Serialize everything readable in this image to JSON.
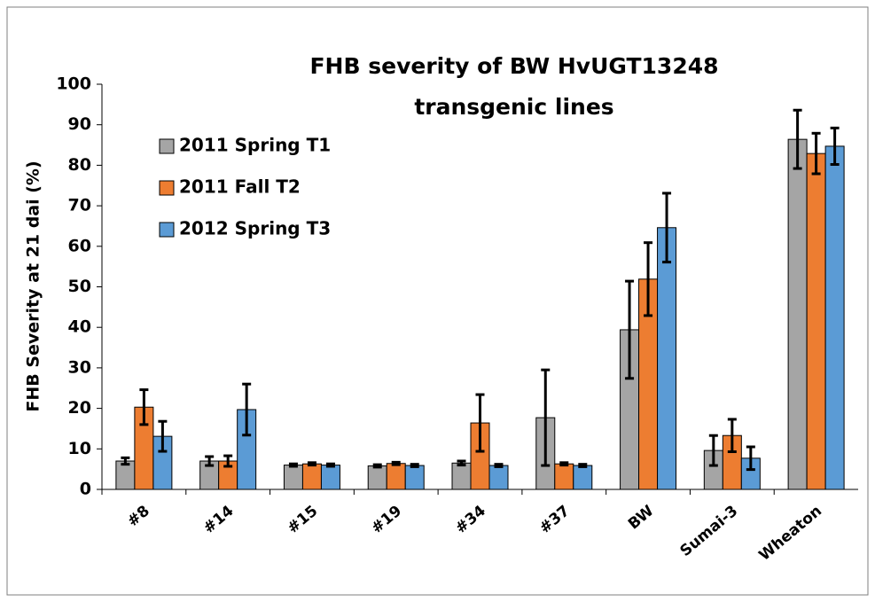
{
  "chart_data": {
    "type": "bar",
    "title": "FHB severity of BW HvUGT13248 transgenic lines",
    "y_label": "FHB Severity at 21 dai (%)",
    "categories": [
      "#8",
      "#14",
      "#15",
      "#19",
      "#34",
      "#37",
      "BW",
      "Sumai-3",
      "Wheaton"
    ],
    "series": [
      {
        "name": "2011 Spring T1",
        "color": "#a5a5a5",
        "values": [
          7.0,
          7.0,
          6.0,
          5.8,
          6.5,
          17.7,
          39.4,
          9.6,
          86.4
        ],
        "errors": [
          0.8,
          1.1,
          0.3,
          0.3,
          0.5,
          11.8,
          12.0,
          3.7,
          7.2
        ]
      },
      {
        "name": "2011 Fall T2",
        "color": "#ed7d31",
        "values": [
          20.3,
          7.0,
          6.3,
          6.4,
          16.4,
          6.3,
          51.9,
          13.3,
          82.9
        ],
        "errors": [
          4.3,
          1.3,
          0.3,
          0.3,
          7.0,
          0.3,
          9.0,
          4.0,
          5.0
        ]
      },
      {
        "name": "2012 Spring T3",
        "color": "#5b9bd5",
        "values": [
          13.1,
          19.7,
          6.0,
          5.9,
          5.9,
          5.9,
          64.6,
          7.7,
          84.7
        ],
        "errors": [
          3.7,
          6.3,
          0.3,
          0.3,
          0.3,
          0.3,
          8.5,
          2.8,
          4.5
        ]
      }
    ],
    "ylim": [
      0,
      100
    ],
    "yticks": [
      0,
      10,
      20,
      30,
      40,
      50,
      60,
      70,
      80,
      90,
      100
    ],
    "legend": "upper left"
  }
}
